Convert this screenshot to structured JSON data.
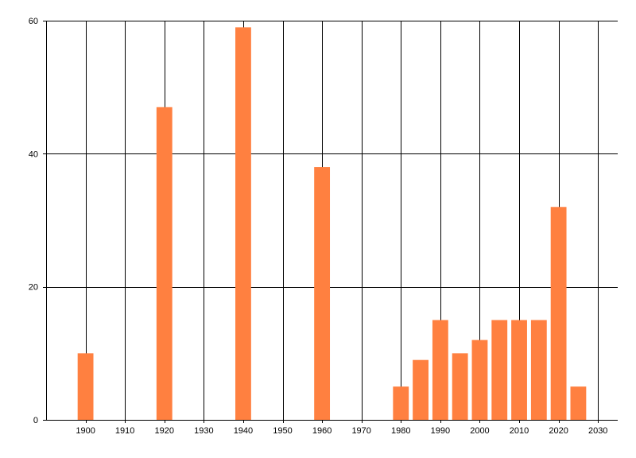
{
  "chart_data": {
    "type": "bar",
    "title": "",
    "xlabel": "",
    "ylabel": "",
    "x": [
      1900,
      1920,
      1940,
      1960,
      1980,
      1985,
      1990,
      1995,
      2000,
      2005,
      2010,
      2015,
      2020,
      2025
    ],
    "values": [
      10,
      47,
      59,
      38,
      5,
      9,
      15,
      10,
      12,
      15,
      15,
      15,
      32,
      5
    ],
    "xlim": [
      1890,
      2035
    ],
    "ylim": [
      0,
      60
    ],
    "x_ticks": [
      1900,
      1910,
      1920,
      1930,
      1940,
      1950,
      1960,
      1970,
      1980,
      1990,
      2000,
      2010,
      2020,
      2030
    ],
    "y_ticks": [
      0,
      20,
      40,
      60
    ],
    "bar_width_years": 4,
    "grid": true,
    "legend": "none",
    "bar_color": "#ff8040",
    "grid_color": "#000000"
  }
}
